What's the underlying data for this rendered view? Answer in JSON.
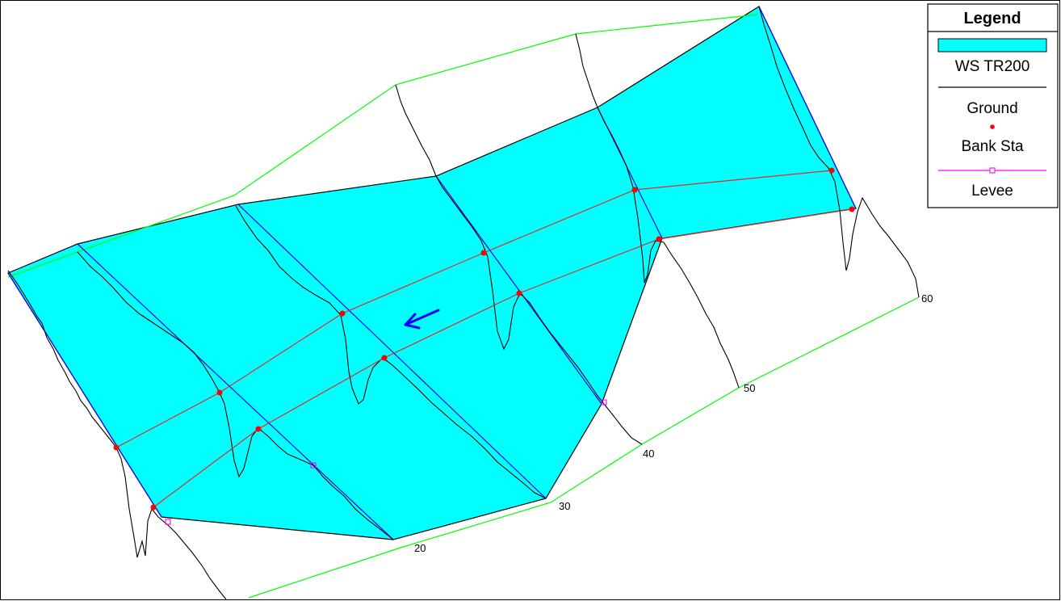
{
  "legend": {
    "title": "Legend",
    "items": [
      {
        "label": "WS TR200",
        "color": "#00ffff",
        "symbol": "filled-rectangle"
      },
      {
        "label": "Ground",
        "color": "#000000",
        "symbol": "line"
      },
      {
        "label": "Bank Sta",
        "color": "#ff0000",
        "symbol": "dot"
      },
      {
        "label": "Levee",
        "color": "#ff00ff",
        "symbol": "line-with-square-marker"
      }
    ]
  },
  "stations": [
    "20",
    "30",
    "40",
    "50",
    "60"
  ],
  "colors": {
    "water_surface": "#00ffff",
    "reach_outline": "#00ff00",
    "cross_section": "#0000ff",
    "bank_line": "#e32a2a",
    "bank_station": "#ff0000",
    "levee": "#ff00ff",
    "flow_arrow": "#0000ff"
  },
  "flow_direction_icon": "arrow-icon"
}
